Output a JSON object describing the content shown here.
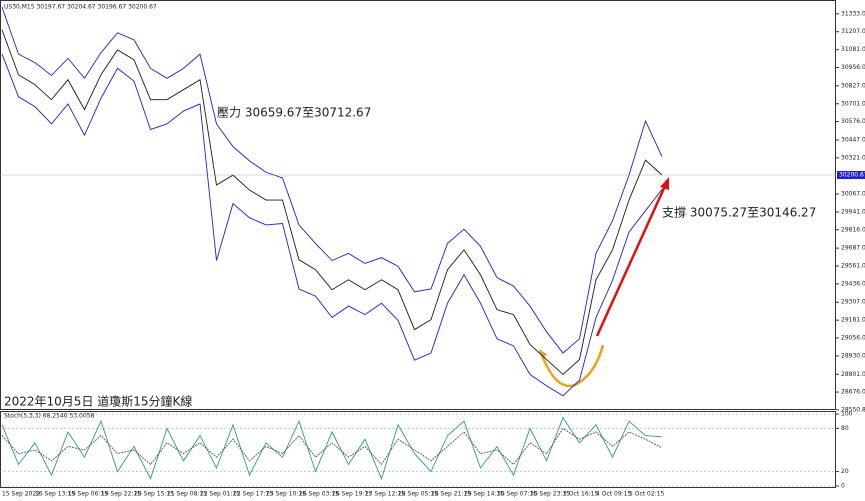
{
  "chart_data": [
    {
      "type": "line",
      "title": "US30,M15 30197.67 30204.67 30196.67 30200.67",
      "annotations": [
        "壓力 30659.67至30712.67",
        "支撐 30075.27至30146.27",
        "2022年10月5日 道瓊斯15分鐘K線"
      ],
      "current_price": {
        "value": 30200.67,
        "label": "30200.67"
      },
      "categories": [
        "15 Sep 2022",
        null,
        "16 Sep 13:15",
        null,
        "19 Sep 06:15",
        null,
        "19 Sep 22:15",
        null,
        "20 Sep 15:15",
        null,
        "21 Sep 08:15",
        null,
        "22 Sep 01:15",
        null,
        "22 Sep 17:15",
        null,
        "23 Sep 10:15",
        null,
        "26 Sep 03:15",
        null,
        "26 Sep 19:15",
        null,
        "27 Sep 12:15",
        null,
        "28 Sep 05:15",
        null,
        "28 Sep 21:15",
        null,
        "29 Sep 14:15",
        null,
        "30 Sep 07:15",
        null,
        "30 Sep 23:15",
        null,
        "3 Oct 16:15",
        null,
        "4 Oct 09:15",
        null,
        "5 Oct 02:15",
        null,
        null
      ],
      "series": [
        {
          "color": "#1a1a1a",
          "values": [
            31220,
            30905,
            30835,
            30730,
            30870,
            30660,
            30905,
            31080,
            31010,
            30730,
            30730,
            30800,
            30870,
            30130,
            30200,
            30095,
            30025,
            30025,
            29605,
            29535,
            29395,
            29465,
            29395,
            29465,
            29395,
            29115,
            29185,
            29535,
            29675,
            29500,
            29255,
            29220,
            29010,
            28905,
            28800,
            28905,
            29465,
            29675,
            30025,
            30305,
            30200.67
          ]
        },
        {
          "color": "#1f1fd0",
          "values": [
            31380,
            31050,
            30990,
            30900,
            31020,
            30880,
            31060,
            31200,
            31150,
            30950,
            30880,
            30950,
            31050,
            30560,
            30400,
            30300,
            30220,
            30180,
            29850,
            29720,
            29600,
            29650,
            29580,
            29620,
            29560,
            29380,
            29400,
            29720,
            29820,
            29700,
            29480,
            29420,
            29280,
            29100,
            28950,
            29050,
            29650,
            29880,
            30200,
            30580,
            30330
          ]
        },
        {
          "color": "#1f1fd0",
          "values": [
            31050,
            30750,
            30680,
            30560,
            30700,
            30480,
            30740,
            30950,
            30860,
            30520,
            30560,
            30650,
            30700,
            29600,
            30000,
            29900,
            29850,
            29860,
            29400,
            29350,
            29200,
            29280,
            29220,
            29300,
            29180,
            28900,
            28950,
            29300,
            29500,
            29300,
            29050,
            29000,
            28800,
            28720,
            28650,
            28760,
            29200,
            29460,
            29800,
            29950,
            30100
          ]
        }
      ],
      "ylim": [
        28550,
        31430
      ],
      "yticks": [
        {
          "value": 31333,
          "label": "31333.00"
        },
        {
          "value": 31207,
          "label": "31207.00"
        },
        {
          "value": 31081,
          "label": "31081.00"
        },
        {
          "value": 30956,
          "label": "30956.00"
        },
        {
          "value": 30827,
          "label": "30827.00"
        },
        {
          "value": 30701,
          "label": "30701.00"
        },
        {
          "value": 30576,
          "label": "30576.00"
        },
        {
          "value": 30447,
          "label": "30447.00"
        },
        {
          "value": 30321,
          "label": "30321.00"
        },
        {
          "value": 30067,
          "label": "30067.00"
        },
        {
          "value": 29941,
          "label": "29941.00"
        },
        {
          "value": 29816,
          "label": "29816.00"
        },
        {
          "value": 29687,
          "label": "29687.00"
        },
        {
          "value": 29561,
          "label": "29561.00"
        },
        {
          "value": 29436,
          "label": "29436.00"
        },
        {
          "value": 29307,
          "label": "29307.00"
        },
        {
          "value": 29181,
          "label": "29181.00"
        },
        {
          "value": 29056,
          "label": "29056.00"
        },
        {
          "value": 28930,
          "label": "28930.00"
        },
        {
          "value": 28801,
          "label": "28801.00"
        },
        {
          "value": 28676,
          "label": "28676.00"
        },
        {
          "value": 28550.8,
          "label": "28550.80"
        }
      ]
    },
    {
      "type": "line",
      "title": "Stoch(5,3,3) 68.2540 53.0058",
      "series": [
        {
          "color": "#2a9a8a",
          "values": [
            85,
            30,
            60,
            15,
            75,
            40,
            90,
            20,
            55,
            10,
            80,
            35,
            70,
            25,
            85,
            15,
            60,
            40,
            90,
            20,
            75,
            30,
            65,
            10,
            85,
            45,
            20,
            70,
            90,
            25,
            55,
            15,
            80,
            35,
            95,
            60,
            85,
            40,
            90,
            70,
            68.254
          ]
        },
        {
          "color": "#555555",
          "values": [
            70,
            45,
            50,
            35,
            55,
            50,
            70,
            45,
            50,
            30,
            60,
            45,
            60,
            40,
            65,
            35,
            55,
            45,
            70,
            40,
            60,
            40,
            55,
            30,
            65,
            50,
            35,
            55,
            75,
            45,
            50,
            30,
            60,
            45,
            80,
            65,
            75,
            55,
            75,
            65,
            53.0058
          ]
        }
      ],
      "ylim": [
        0,
        100
      ],
      "yticks": [
        100,
        80,
        20,
        0
      ]
    }
  ]
}
